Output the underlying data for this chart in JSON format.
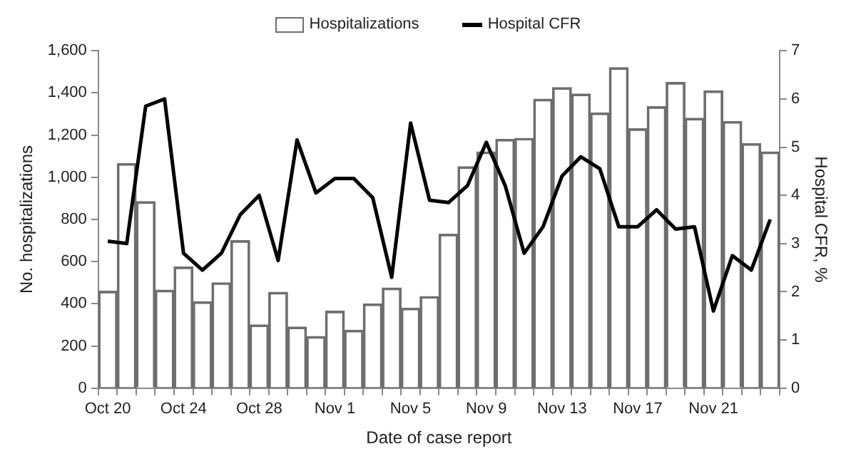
{
  "chart_data": {
    "type": "bar",
    "xlabel": "Date of case report",
    "ylabel": "No. hospitalizations",
    "y2label": "Hospital CFR, %",
    "categories": [
      "Oct 20",
      null,
      null,
      null,
      "Oct 24",
      null,
      null,
      null,
      "Oct 28",
      null,
      null,
      null,
      "Nov 1",
      null,
      null,
      null,
      "Nov 5",
      null,
      null,
      null,
      "Nov 9",
      null,
      null,
      null,
      "Nov 13",
      null,
      null,
      null,
      "Nov 17",
      null,
      null,
      null,
      "Nov 21",
      null,
      null,
      null
    ],
    "series": [
      {
        "name": "Hospitalizations",
        "color": "#6e6e6e",
        "values": [
          460,
          1065,
          885,
          465,
          575,
          410,
          500,
          700,
          300,
          455,
          290,
          245,
          365,
          275,
          400,
          475,
          380,
          435,
          730,
          1050,
          1120,
          1180,
          1185,
          1370,
          1425,
          1395,
          1305,
          1520,
          1230,
          1335,
          1450,
          1280,
          1410,
          1265,
          1160,
          1120
        ]
      },
      {
        "name": "Hospital CFR",
        "type": "line",
        "axis": "y2",
        "color": "#000000",
        "values": [
          3.05,
          3.0,
          5.85,
          6.0,
          2.8,
          2.45,
          2.8,
          3.6,
          4.0,
          2.65,
          5.15,
          4.05,
          4.35,
          4.35,
          3.95,
          2.3,
          5.5,
          3.9,
          3.85,
          4.2,
          5.1,
          4.2,
          2.8,
          3.35,
          4.4,
          4.8,
          4.55,
          3.35,
          3.35,
          3.7,
          3.3,
          3.35,
          1.6,
          2.75,
          2.45,
          3.5
        ]
      }
    ],
    "ylim": [
      0,
      1600
    ],
    "yticks": [
      0,
      200,
      400,
      600,
      800,
      {
        "value": 1000,
        "label": "1,000"
      },
      {
        "value": 1200,
        "label": "1,200"
      },
      {
        "value": 1400,
        "label": "1,400"
      },
      {
        "value": 1600,
        "label": "1,600"
      }
    ],
    "y2lim": [
      0,
      7
    ],
    "y2ticks": [
      0,
      1,
      2,
      3,
      4,
      5,
      6,
      7
    ],
    "legend": "top",
    "marker": "none"
  }
}
